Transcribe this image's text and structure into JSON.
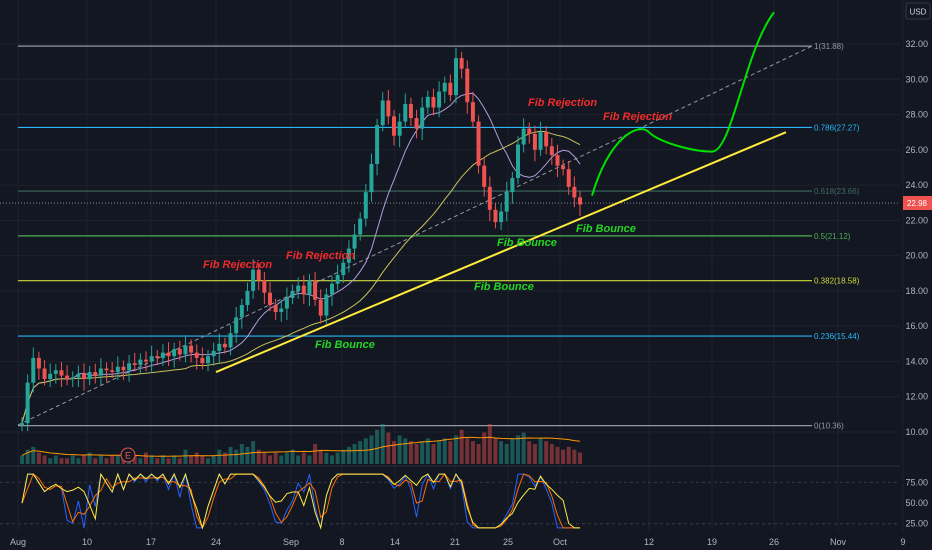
{
  "currency_label": "USD",
  "current_price": "22.98",
  "colors": {
    "background": "#131722",
    "grid": "#1e222d",
    "candle_up": "#26a69a",
    "candle_down": "#ef5350",
    "trendline": "#ffeb3b",
    "projection": "#00e000",
    "fib_rejection_text": "#ef2b2b",
    "fib_bounce_text": "#22d622",
    "ma_short": "#b39ddb",
    "ma_long": "#c9c25a"
  },
  "annotations": {
    "fib_rejection_1": "Fib Rejection",
    "fib_rejection_2": "Fib Rejection",
    "fib_rejection_3": "Fib Rejection",
    "fib_rejection_4": "Fib Rejection",
    "fib_bounce_1": "Fib Bounce",
    "fib_bounce_2": "Fib Bounce",
    "fib_bounce_3": "Fib Bounce",
    "fib_bounce_4": "Fib Bounce",
    "earnings_marker": "E"
  },
  "chart_data": [
    {
      "type": "candlestick",
      "title": "",
      "y_axis_ticks": [
        32.0,
        30.0,
        28.0,
        26.0,
        24.0,
        22.0,
        20.0,
        18.0,
        16.0,
        14.0,
        12.0,
        10.0
      ],
      "y_axis_labels": [
        "32.00",
        "30.00",
        "28.00",
        "26.00",
        "24.00",
        "22.00",
        "20.00",
        "18.00",
        "16.00",
        "14.00",
        "12.00",
        "10.00"
      ],
      "ylim": [
        9.5,
        33.5
      ],
      "x_axis_labels": [
        "Aug",
        "10",
        "17",
        "24",
        "Sep",
        "8",
        "14",
        "21",
        "25",
        "Oct",
        "12",
        "19",
        "26",
        "Nov",
        "9"
      ],
      "grid": true,
      "fib_levels": [
        {
          "label": "1(31.88)",
          "value": 31.88,
          "color": "#9598a1"
        },
        {
          "label": "0.786(27.27)",
          "value": 27.27,
          "color": "#29b6f6"
        },
        {
          "label": "0.618(23.66)",
          "value": 23.66,
          "color": "#3d6b5f"
        },
        {
          "label": "0.5(21.12)",
          "value": 21.12,
          "color": "#4caf50"
        },
        {
          "label": "0.382(18.58)",
          "value": 18.58,
          "color": "#cddc39"
        },
        {
          "label": "0.236(15.44)",
          "value": 15.44,
          "color": "#29b6f6"
        },
        {
          "label": "0(10.36)",
          "value": 10.36,
          "color": "#9598a1"
        }
      ],
      "close_prices": [
        10.5,
        12.8,
        14.2,
        13.6,
        13.0,
        13.3,
        13.5,
        13.2,
        13.0,
        13.1,
        13.3,
        13.0,
        13.4,
        13.2,
        13.6,
        13.5,
        13.4,
        13.7,
        13.5,
        13.9,
        13.8,
        14.1,
        14.0,
        14.3,
        14.2,
        14.5,
        14.3,
        14.7,
        14.4,
        14.9,
        14.5,
        14.2,
        13.9,
        14.3,
        14.6,
        15.0,
        14.8,
        15.6,
        16.5,
        17.2,
        18.0,
        19.2,
        18.6,
        17.9,
        17.2,
        16.8,
        17.0,
        17.6,
        18.0,
        18.3,
        17.8,
        18.6,
        17.5,
        16.6,
        17.8,
        18.4,
        18.9,
        19.6,
        20.4,
        21.2,
        22.1,
        23.6,
        25.2,
        27.4,
        28.8,
        27.9,
        26.8,
        27.6,
        28.6,
        27.8,
        27.2,
        28.4,
        29.0,
        28.4,
        29.3,
        29.8,
        29.1,
        31.2,
        30.6,
        28.7,
        27.6,
        25.1,
        23.9,
        22.6,
        21.9,
        22.5,
        23.6,
        24.4,
        26.3,
        27.2,
        26.9,
        26.0,
        27.0,
        26.2,
        25.7,
        25.1,
        24.9,
        23.9,
        23.3,
        22.9
      ],
      "trendline": {
        "x": [
          "Aug 24",
          "Oct 26"
        ],
        "y": [
          13.4,
          27.0
        ]
      },
      "moving_averages": [
        {
          "color": "#b39ddb"
        },
        {
          "color": "#c9c25a"
        }
      ],
      "projection": {
        "color": "#00e000",
        "x": [
          "Oct 6",
          "Oct 12",
          "Oct 19",
          "Oct 26"
        ],
        "y": [
          23.4,
          27.0,
          25.9,
          33.8
        ]
      }
    },
    {
      "type": "volume",
      "values": [
        3,
        5,
        6,
        4,
        3,
        2,
        3,
        2,
        2,
        3,
        2,
        3,
        4,
        2,
        3,
        2,
        3,
        3,
        4,
        2,
        3,
        2,
        4,
        3,
        2,
        3,
        2,
        3,
        2,
        5,
        3,
        4,
        3,
        2,
        3,
        5,
        4,
        6,
        5,
        7,
        6,
        8,
        5,
        4,
        3,
        4,
        3,
        4,
        5,
        3,
        4,
        3,
        7,
        5,
        4,
        3,
        4,
        5,
        6,
        7,
        8,
        9,
        10,
        12,
        14,
        11,
        8,
        10,
        9,
        8,
        7,
        8,
        9,
        7,
        8,
        9,
        8,
        10,
        12,
        9,
        8,
        7,
        11,
        14,
        9,
        8,
        7,
        9,
        10,
        11,
        8,
        7,
        9,
        8,
        7,
        6,
        5,
        6,
        5,
        4
      ]
    },
    {
      "type": "line",
      "y_axis_labels": [
        "75.00",
        "50.00",
        "25.00"
      ],
      "ylim": [
        15,
        90
      ],
      "series": [
        {
          "color": "#2962ff"
        },
        {
          "color": "#ff6d00"
        },
        {
          "color": "#ffeb3b"
        }
      ]
    }
  ]
}
